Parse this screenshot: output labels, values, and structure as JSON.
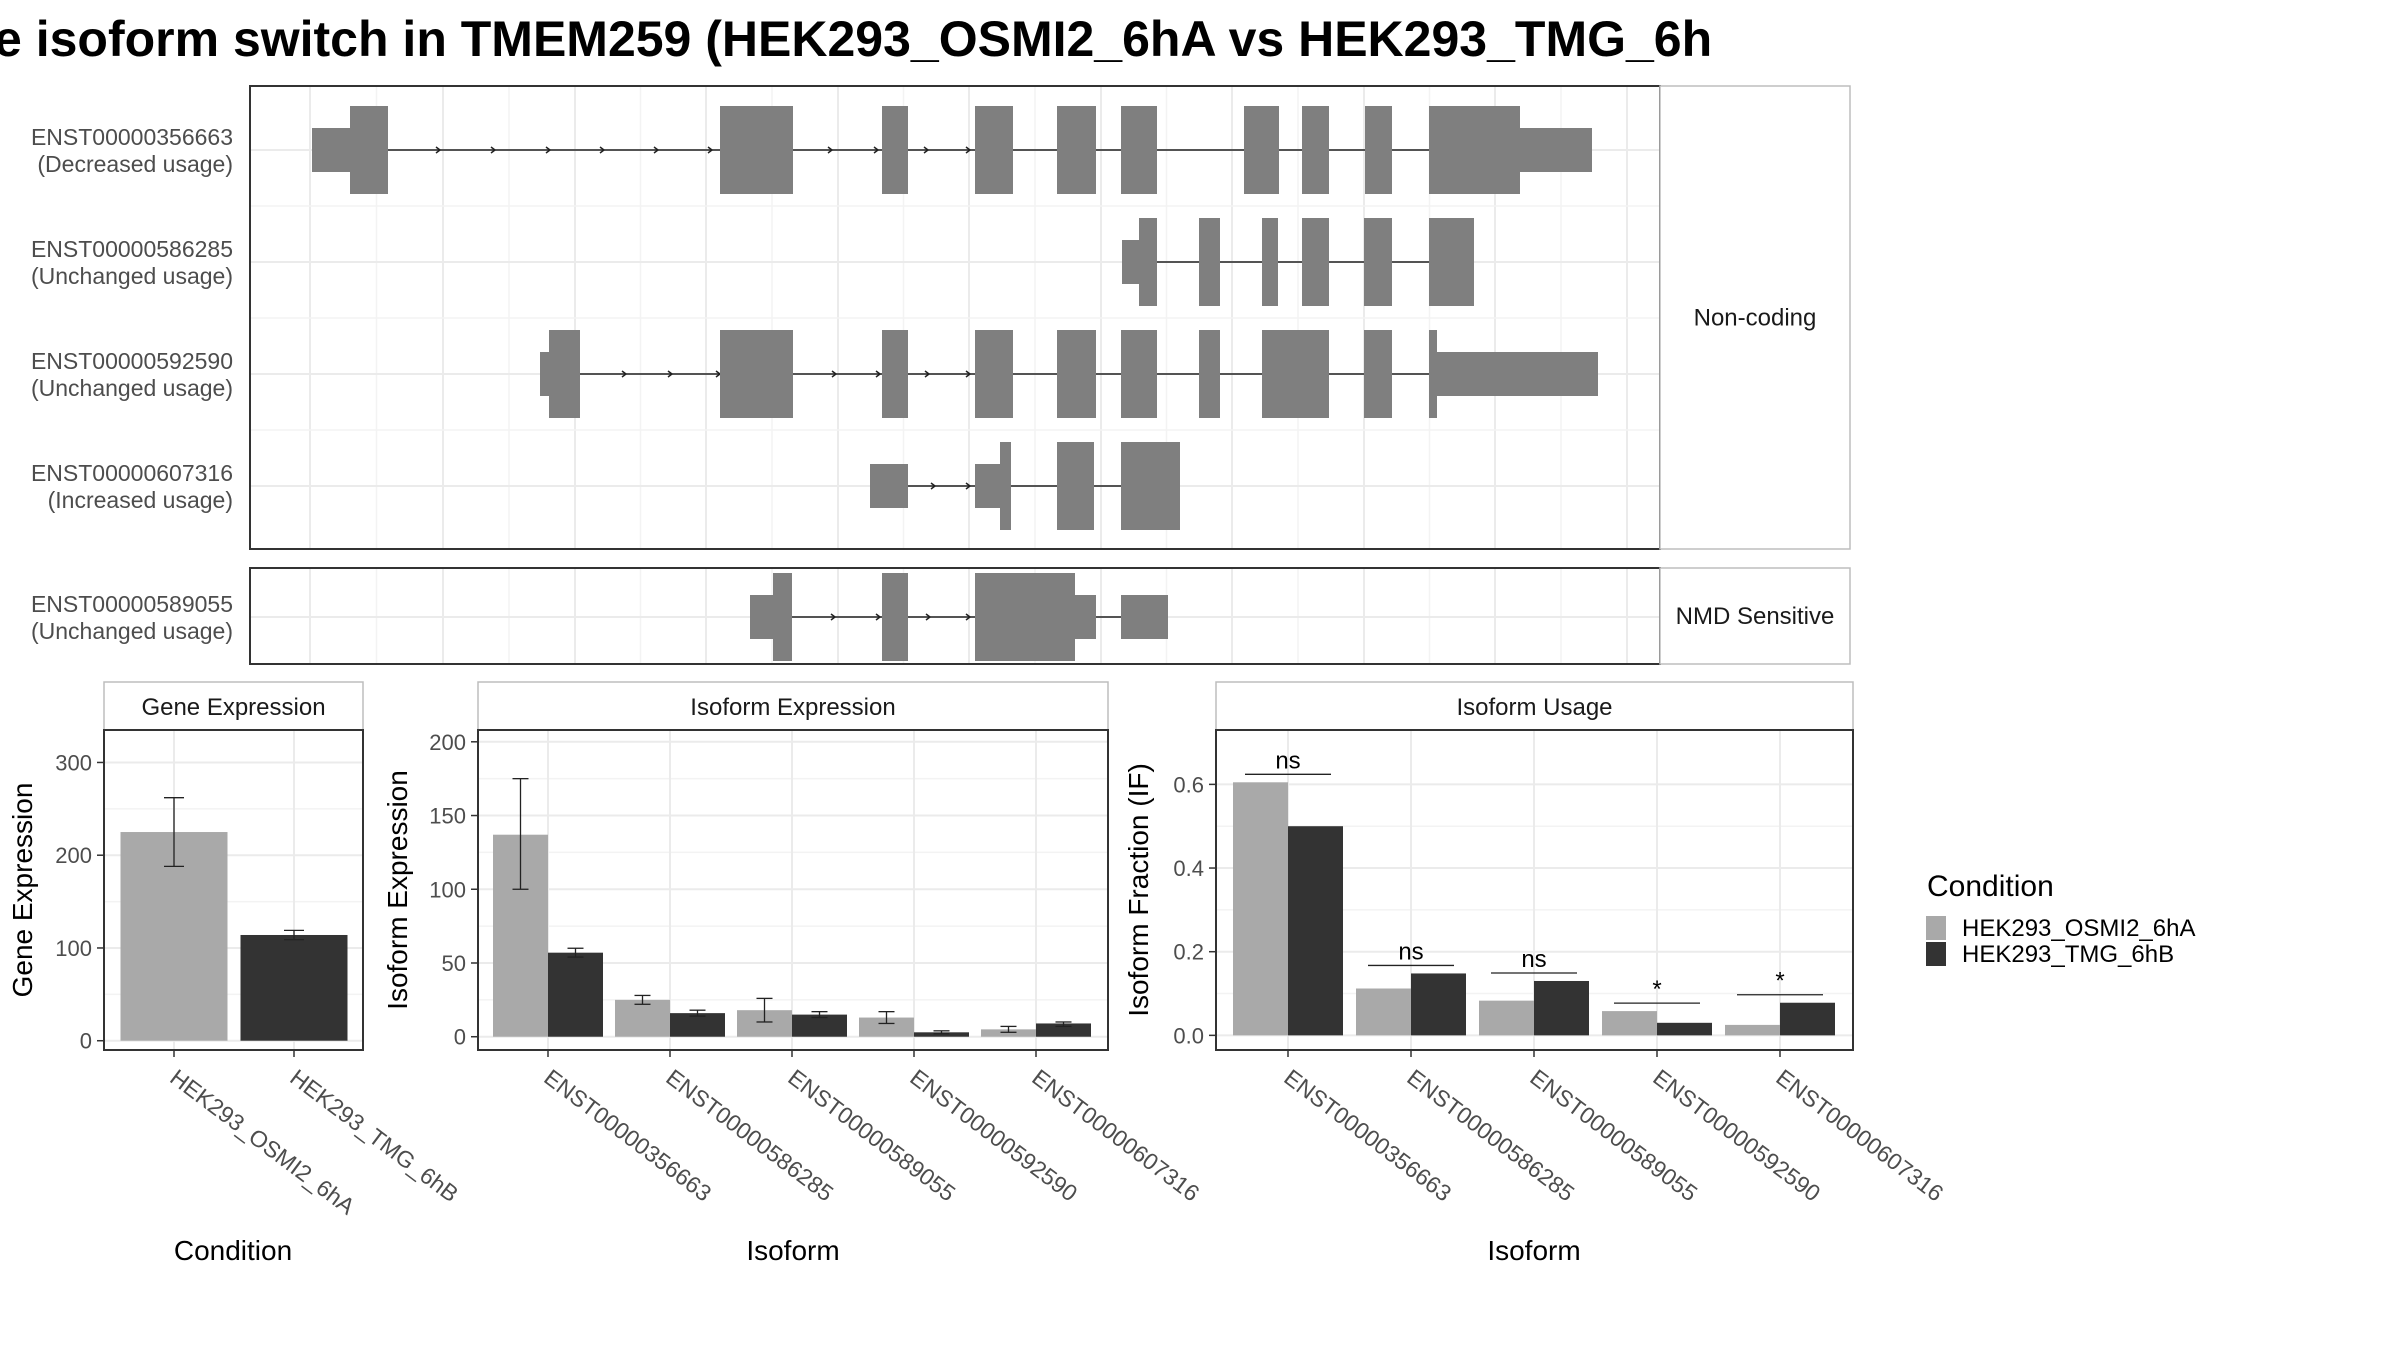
{
  "title": "e isoform switch in TMEM259 (HEK293_OSMI2_6hA vs HEK293_TMG_6h",
  "colors": {
    "light": "#a9a9a9",
    "dark": "#333333",
    "exon": "#7f7f7f",
    "grid": "#ebebeb",
    "strip_bg": "#ffffff",
    "border": "#333333"
  },
  "structure": {
    "panels": [
      {
        "label": "Non-coding",
        "transcripts": [
          {
            "id": "ENST00000356663",
            "usage": "(Decreased usage)"
          },
          {
            "id": "ENST00000586285",
            "usage": "(Unchanged usage)"
          },
          {
            "id": "ENST00000592590",
            "usage": "(Unchanged usage)"
          },
          {
            "id": "ENST00000607316",
            "usage": "(Increased usage)"
          }
        ]
      },
      {
        "label": "NMD Sensitive",
        "transcripts": [
          {
            "id": "ENST00000589055",
            "usage": "(Unchanged usage)"
          }
        ]
      }
    ]
  },
  "legend": {
    "title": "Condition",
    "items": [
      "HEK293_OSMI2_6hA",
      "HEK293_TMG_6hB"
    ]
  },
  "chart_data": [
    {
      "type": "bar",
      "title": "Gene Expression",
      "xlabel": "Condition",
      "ylabel": "Gene Expression",
      "categories": [
        "HEK293_OSMI2_6hA",
        "HEK293_TMG_6hB"
      ],
      "values": [
        225,
        114
      ],
      "error_low": [
        188,
        109
      ],
      "error_high": [
        262,
        119
      ],
      "yticks": [
        0,
        100,
        200,
        300
      ],
      "ylim": [
        -10,
        335
      ]
    },
    {
      "type": "bar",
      "title": "Isoform Expression",
      "xlabel": "Isoform",
      "ylabel": "Isoform Expression",
      "categories": [
        "ENST00000356663",
        "ENST00000586285",
        "ENST00000589055",
        "ENST00000592590",
        "ENST00000607316"
      ],
      "series": [
        {
          "name": "HEK293_OSMI2_6hA",
          "values": [
            137,
            25,
            18,
            13,
            5
          ],
          "error_low": [
            100,
            22,
            10,
            9,
            3
          ],
          "error_high": [
            175,
            28,
            26,
            17,
            7
          ]
        },
        {
          "name": "HEK293_TMG_6hB",
          "values": [
            57,
            16,
            15,
            3,
            9
          ],
          "error_low": [
            54,
            14,
            13,
            2,
            7
          ],
          "error_high": [
            60,
            18,
            17,
            4,
            10
          ]
        }
      ],
      "yticks": [
        0,
        50,
        100,
        150,
        200
      ],
      "ylim": [
        -9,
        208
      ]
    },
    {
      "type": "bar",
      "title": "Isoform Usage",
      "xlabel": "Isoform",
      "ylabel": "Isoform Fraction (IF)",
      "categories": [
        "ENST00000356663",
        "ENST00000586285",
        "ENST00000589055",
        "ENST00000592590",
        "ENST00000607316"
      ],
      "series": [
        {
          "name": "HEK293_OSMI2_6hA",
          "values": [
            0.605,
            0.112,
            0.083,
            0.058,
            0.025
          ]
        },
        {
          "name": "HEK293_TMG_6hB",
          "values": [
            0.5,
            0.148,
            0.13,
            0.03,
            0.078
          ]
        }
      ],
      "significance": [
        "ns",
        "ns",
        "ns",
        "*",
        "*"
      ],
      "yticks": [
        "0.0",
        "0.2",
        "0.4",
        "0.6"
      ],
      "ylim": [
        -0.035,
        0.73
      ]
    }
  ]
}
